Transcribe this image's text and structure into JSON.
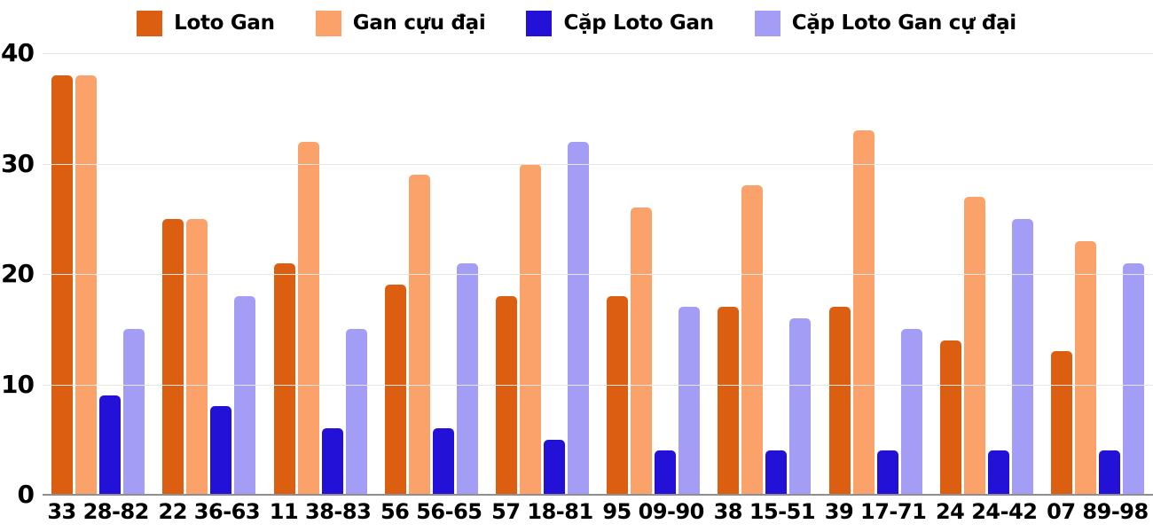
{
  "chart_data": {
    "type": "bar",
    "title": "",
    "xlabel": "",
    "ylabel": "",
    "categories": [
      "33 28-82",
      "22 36-63",
      "11 38-83",
      "56 56-65",
      "57 18-81",
      "95 09-90",
      "38 15-51",
      "39 17-71",
      "24 24-42",
      "07 89-98"
    ],
    "series": [
      {
        "name": "Loto Gan",
        "color": "#dc5e10",
        "values": [
          38,
          25,
          21,
          19,
          18,
          18,
          17,
          17,
          14,
          13
        ]
      },
      {
        "name": "Gan cựu đại",
        "color": "#fba26b",
        "values": [
          38,
          25,
          32,
          29,
          30,
          26,
          28,
          33,
          27,
          23
        ]
      },
      {
        "name": "Cặp Loto Gan",
        "color": "#2311d8",
        "values": [
          9,
          8,
          6,
          6,
          5,
          4,
          4,
          4,
          4,
          4
        ]
      },
      {
        "name": "Cặp Loto Gan cự đại",
        "color": "#a39df6",
        "values": [
          15,
          18,
          15,
          21,
          32,
          17,
          16,
          15,
          25,
          21
        ]
      }
    ],
    "ylim": [
      0,
      40
    ],
    "yticks": [
      0,
      10,
      20,
      30,
      40
    ],
    "grid": true,
    "legend_position": "top",
    "background_color": "#ffffff",
    "gridline_color": "#e6e6e6",
    "axis_line_color": "#8f8f8f",
    "label_color": "#000000"
  }
}
